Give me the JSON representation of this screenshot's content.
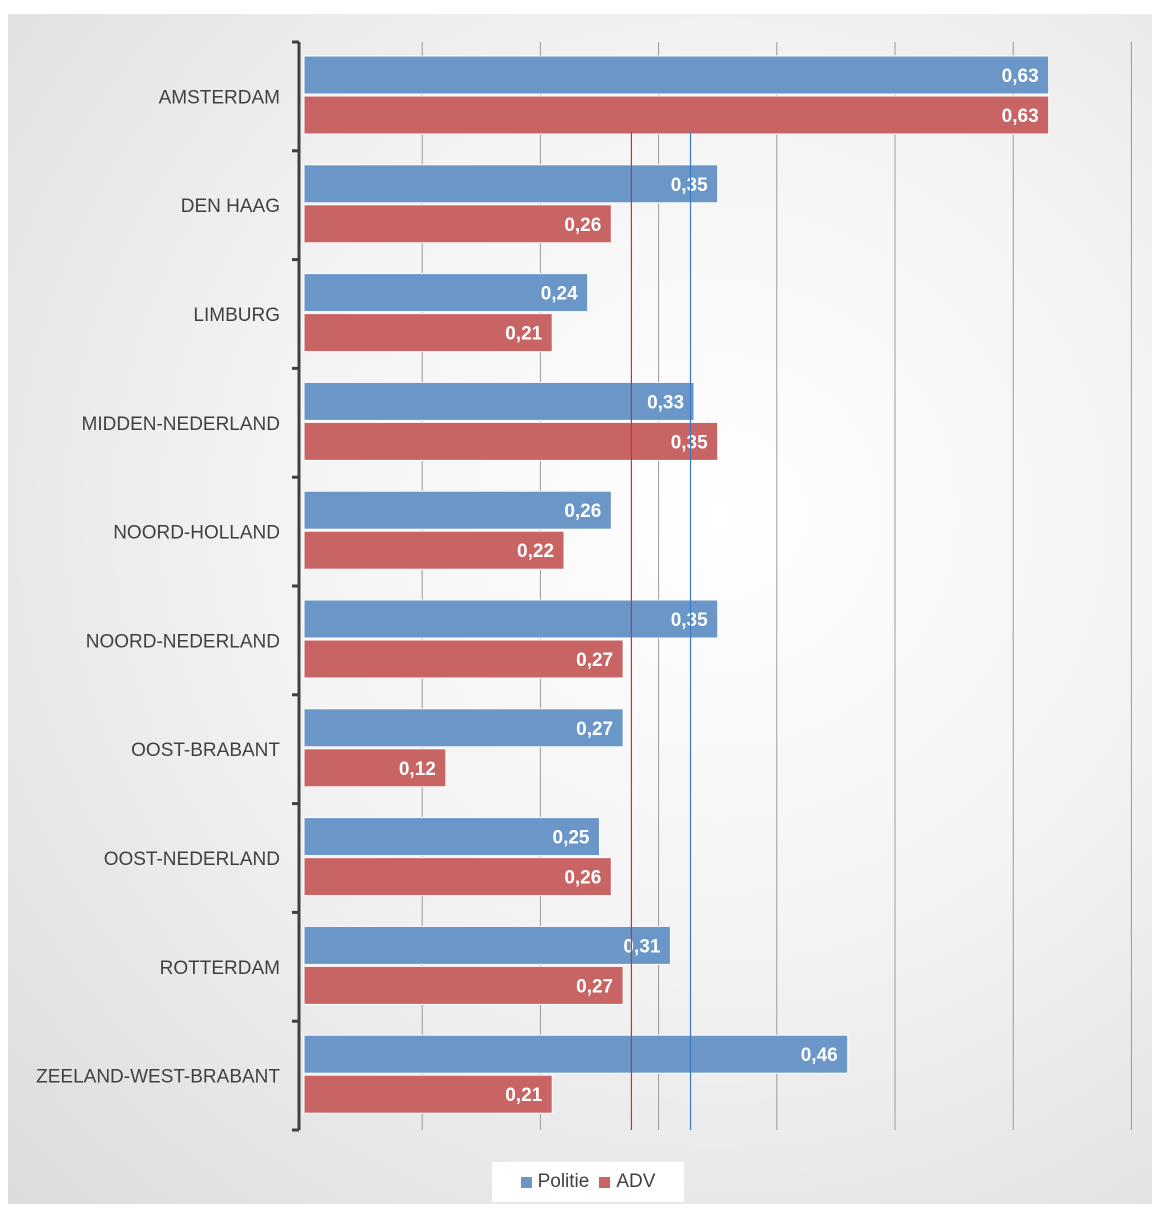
{
  "chart_data": {
    "type": "bar",
    "orientation": "horizontal",
    "categories": [
      "AMSTERDAM",
      "DEN HAAG",
      "LIMBURG",
      "MIDDEN-NEDERLAND",
      "NOORD-HOLLAND",
      "NOORD-NEDERLAND",
      "OOST-BRABANT",
      "OOST-NEDERLAND",
      "ROTTERDAM",
      "ZEELAND-WEST-BRABANT"
    ],
    "series": [
      {
        "name": "Politie",
        "color": "#6a97c8",
        "labels": [
          "0,63",
          "0,35",
          "0,24",
          "0,33",
          "0,26",
          "0,35",
          "0,27",
          "0,25",
          "0,31",
          "0,46"
        ],
        "values": [
          0.63,
          0.35,
          0.24,
          0.33,
          0.26,
          0.35,
          0.27,
          0.25,
          0.31,
          0.46
        ]
      },
      {
        "name": "ADV",
        "color": "#c86464",
        "labels": [
          "0,63",
          "0,26",
          "0,21",
          "0,35",
          "0,22",
          "0,27",
          "0,12",
          "0,26",
          "0,27",
          "0,21"
        ],
        "values": [
          0.63,
          0.26,
          0.21,
          0.35,
          0.22,
          0.27,
          0.12,
          0.26,
          0.27,
          0.21
        ]
      }
    ],
    "reference_lines": [
      {
        "series": "ADV",
        "value": 0.277,
        "color": "#c0392b"
      },
      {
        "series": "Politie",
        "value": 0.327,
        "color": "#3a78c9"
      }
    ],
    "xlim": [
      0,
      0.7
    ],
    "gridlines": [
      0.1,
      0.2,
      0.3,
      0.4,
      0.5,
      0.6,
      0.7
    ],
    "grid": true,
    "legend_position": "bottom"
  }
}
